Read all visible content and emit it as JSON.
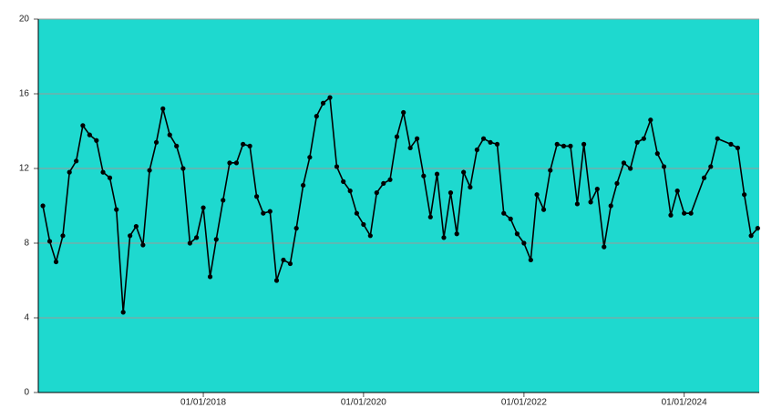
{
  "chart_data": {
    "type": "line",
    "x": [
      "2016-01-01",
      "2016-02-01",
      "2016-03-01",
      "2016-04-01",
      "2016-05-01",
      "2016-06-01",
      "2016-07-01",
      "2016-08-01",
      "2016-09-01",
      "2016-10-01",
      "2016-11-01",
      "2016-12-01",
      "2017-01-01",
      "2017-02-01",
      "2017-03-01",
      "2017-04-01",
      "2017-05-01",
      "2017-06-01",
      "2017-07-01",
      "2017-08-01",
      "2017-09-01",
      "2017-10-01",
      "2017-11-01",
      "2017-12-01",
      "2018-01-01",
      "2018-02-01",
      "2018-03-01",
      "2018-04-01",
      "2018-05-01",
      "2018-06-01",
      "2018-07-01",
      "2018-08-01",
      "2018-09-01",
      "2018-10-01",
      "2018-11-01",
      "2018-12-01",
      "2019-01-01",
      "2019-02-01",
      "2019-03-01",
      "2019-04-01",
      "2019-05-01",
      "2019-06-01",
      "2019-07-01",
      "2019-08-01",
      "2019-09-01",
      "2019-10-01",
      "2019-11-01",
      "2019-12-01",
      "2020-01-01",
      "2020-02-01",
      "2020-03-01",
      "2020-04-01",
      "2020-05-01",
      "2020-06-01",
      "2020-07-01",
      "2020-08-01",
      "2020-09-01",
      "2020-10-01",
      "2020-11-01",
      "2020-12-01",
      "2021-01-01",
      "2021-02-01",
      "2021-03-01",
      "2021-04-01",
      "2021-05-01",
      "2021-06-01",
      "2021-07-01",
      "2021-08-01",
      "2021-09-01",
      "2021-10-01",
      "2021-11-01",
      "2021-12-01",
      "2022-01-01",
      "2022-02-01",
      "2022-03-01",
      "2022-04-01",
      "2022-05-01",
      "2022-06-01",
      "2022-07-01",
      "2022-08-01",
      "2022-09-01",
      "2022-10-01",
      "2022-11-01",
      "2022-12-01",
      "2023-01-01",
      "2023-02-01",
      "2023-03-01",
      "2023-04-01",
      "2023-05-01",
      "2023-06-01",
      "2023-07-01",
      "2023-08-01",
      "2023-09-01",
      "2023-10-01",
      "2023-11-01",
      "2023-12-01",
      "2024-01-01",
      "2024-02-01",
      "2024-04-01",
      "2024-05-01",
      "2024-06-01",
      "2024-08-01",
      "2024-09-01",
      "2024-10-01",
      "2024-11-01",
      "2024-12-01"
    ],
    "series": [
      {
        "color": "#000000",
        "values": [
          10.0,
          8.1,
          7.0,
          8.4,
          11.8,
          12.4,
          14.3,
          13.8,
          13.5,
          11.8,
          11.5,
          9.8,
          4.3,
          8.4,
          8.9,
          7.9,
          11.9,
          13.4,
          15.2,
          13.8,
          13.2,
          12.0,
          8.0,
          8.3,
          9.9,
          6.2,
          8.2,
          10.3,
          12.3,
          12.3,
          13.3,
          13.2,
          10.5,
          9.6,
          9.7,
          6.0,
          7.1,
          6.9,
          8.8,
          11.1,
          12.6,
          14.8,
          15.5,
          15.8,
          12.1,
          11.3,
          10.8,
          9.6,
          9.0,
          8.4,
          10.7,
          11.2,
          11.4,
          13.7,
          15.0,
          13.1,
          13.6,
          11.6,
          9.4,
          11.7,
          8.3,
          10.7,
          8.5,
          11.8,
          11.0,
          13.0,
          13.6,
          13.4,
          13.3,
          9.6,
          9.3,
          8.5,
          8.0,
          7.1,
          10.6,
          9.8,
          11.9,
          13.3,
          13.2,
          13.2,
          10.1,
          13.3,
          10.2,
          10.9,
          7.8,
          10.0,
          11.2,
          12.3,
          12.0,
          13.4,
          13.6,
          14.6,
          12.8,
          12.1,
          9.5,
          10.8,
          9.6,
          9.6,
          11.5,
          12.1,
          13.6,
          13.3,
          13.1,
          10.6,
          8.4,
          8.8
        ]
      }
    ],
    "xlim": [
      "2015-12-11",
      "2024-12-08"
    ],
    "xticks": [
      {
        "value": "2018-01-01",
        "label": "01/01/2018"
      },
      {
        "value": "2020-01-01",
        "label": "01/01/2020"
      },
      {
        "value": "2022-01-01",
        "label": "01/01/2022"
      },
      {
        "value": "2024-01-01",
        "label": "01/01/2024"
      }
    ],
    "ylim": [
      0,
      20
    ],
    "yticks": [
      0,
      4,
      8,
      12,
      16,
      20
    ],
    "grid": true,
    "background": "#1ed9cf"
  }
}
